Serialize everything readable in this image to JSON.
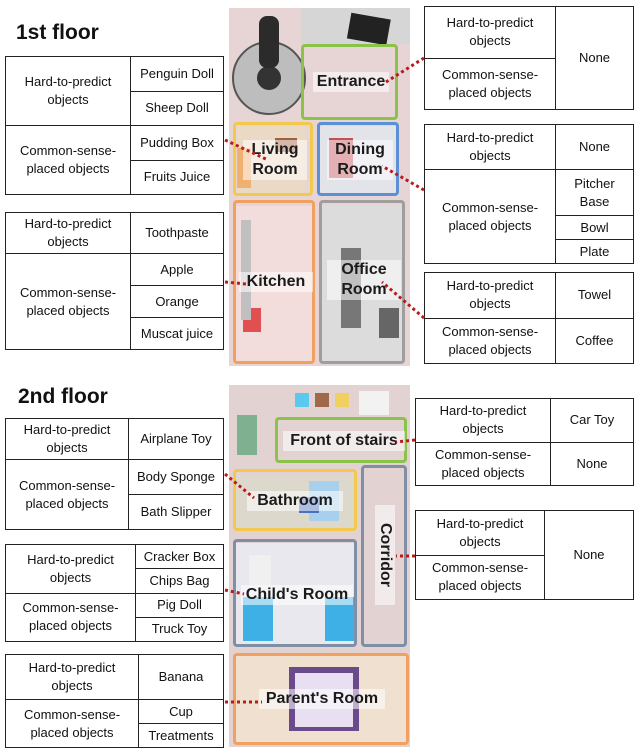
{
  "floor1": {
    "title": "1st floor",
    "rooms": {
      "entrance": "Entrance",
      "living": "Living\nRoom",
      "dining": "Dining\nRoom",
      "kitchen": "Kitchen",
      "office": "Office\nRoom"
    },
    "tables": {
      "living": {
        "hard_label": "Hard-to-predict objects",
        "hard": [
          "Penguin Doll",
          "Sheep Doll"
        ],
        "common_label": "Common-sense-placed objects",
        "common": [
          "Pudding Box",
          "Fruits Juice"
        ]
      },
      "kitchen": {
        "hard_label": "Hard-to-predict objects",
        "hard": [
          "Toothpaste"
        ],
        "common_label": "Common-sense-placed objects",
        "common": [
          "Apple",
          "Orange",
          "Muscat juice"
        ]
      },
      "entrance": {
        "hard_label": "Hard-to-predict objects",
        "common_label": "Common-sense-placed objects",
        "value": "None"
      },
      "dining": {
        "hard_label": "Hard-to-predict objects",
        "hard": [
          "None"
        ],
        "common_label": "Common-sense-placed objects",
        "common": [
          "Pitcher Base",
          "Bowl",
          "Plate"
        ]
      },
      "office": {
        "hard_label": "Hard-to-predict objects",
        "hard": [
          "Towel"
        ],
        "common_label": "Common-sense-placed objects",
        "common": [
          "Coffee"
        ]
      }
    }
  },
  "floor2": {
    "title": "2nd floor",
    "rooms": {
      "stairs": "Front of stairs",
      "bathroom": "Bathroom",
      "corridor": "Corridor",
      "child": "Child's Room",
      "parent": "Parent's Room"
    },
    "tables": {
      "bathroom": {
        "hard_label": "Hard-to-predict objects",
        "hard": [
          "Airplane Toy"
        ],
        "common_label": "Common-sense-placed objects",
        "common": [
          "Body Sponge",
          "Bath Slipper"
        ]
      },
      "child": {
        "hard_label": "Hard-to-predict objects",
        "hard": [
          "Cracker Box",
          "Chips Bag"
        ],
        "common_label": "Common-sense-placed objects",
        "common": [
          "Pig Doll",
          "Truck Toy"
        ]
      },
      "parent": {
        "hard_label": "Hard-to-predict objects",
        "hard": [
          "Banana"
        ],
        "common_label": "Common-sense-placed objects",
        "common": [
          "Cup",
          "Treatments"
        ]
      },
      "stairs": {
        "hard_label": "Hard-to-predict objects",
        "hard": [
          "Car Toy"
        ],
        "common_label": "Common-sense-placed objects",
        "common": [
          "None"
        ]
      },
      "corridor": {
        "hard_label": "Hard-to-predict objects",
        "common_label": "Common-sense-placed objects",
        "value": "None"
      }
    }
  },
  "colors": {
    "entrance": "#8bc34a",
    "living": "#f2c94c",
    "dining": "#5b8fd6",
    "kitchen": "#f0a060",
    "office": "#9e9e9e",
    "stairs": "#8bc34a",
    "bathroom": "#f2c94c",
    "corridor": "#7f8fa6",
    "child": "#7f8fa6",
    "parent": "#f0a060",
    "leader": "#b71c1c"
  }
}
